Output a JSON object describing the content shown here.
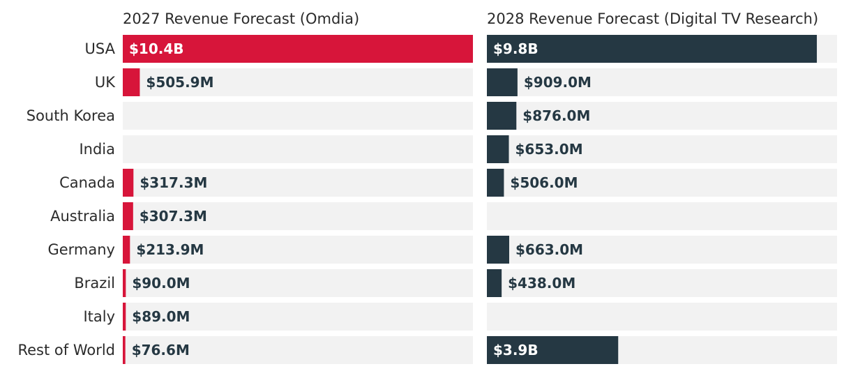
{
  "chart_data": [
    {
      "type": "bar",
      "orientation": "horizontal",
      "title": "2027 Revenue Forecast (Omdia)",
      "bar_color": "#d7153a",
      "track_color": "#f2f2f2",
      "xlim": [
        0,
        10.4
      ],
      "unit": "billion USD",
      "categories": [
        "USA",
        "UK",
        "South Korea",
        "India",
        "Canada",
        "Australia",
        "Germany",
        "Brazil",
        "Italy",
        "Rest of World"
      ],
      "values": [
        10.4,
        0.5059,
        null,
        null,
        0.3173,
        0.3073,
        0.2139,
        0.09,
        0.089,
        0.0766
      ],
      "labels": [
        "$10.4B",
        "$505.9M",
        "",
        "",
        "$317.3M",
        "$307.3M",
        "$213.9M",
        "$90.0M",
        "$89.0M",
        "$76.6M"
      ]
    },
    {
      "type": "bar",
      "orientation": "horizontal",
      "title": "2028 Revenue Forecast (Digital TV Research)",
      "bar_color": "#253843",
      "track_color": "#f2f2f2",
      "xlim": [
        0,
        10.4
      ],
      "unit": "billion USD",
      "categories": [
        "USA",
        "UK",
        "South Korea",
        "India",
        "Canada",
        "Australia",
        "Germany",
        "Brazil",
        "Italy",
        "Rest of World"
      ],
      "values": [
        9.8,
        0.909,
        0.876,
        0.653,
        0.506,
        null,
        0.663,
        0.438,
        null,
        3.9
      ],
      "labels": [
        "$9.8B",
        "$909.0M",
        "$876.0M",
        "$653.0M",
        "$506.0M",
        "",
        "$663.0M",
        "$438.0M",
        "",
        "$3.9B"
      ]
    }
  ]
}
